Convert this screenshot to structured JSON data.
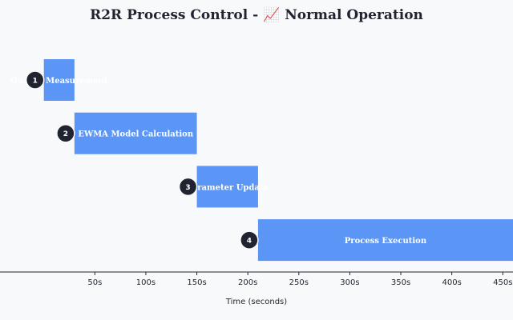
{
  "chart_data": {
    "type": "bar",
    "orientation": "horizontal-timeline",
    "title": "R2R Process Control - 📈 Normal Operation",
    "xlabel": "Time (seconds)",
    "ylabel": "",
    "xlim": [
      -43,
      460
    ],
    "x_ticks": [
      50,
      100,
      150,
      200,
      250,
      300,
      350,
      400,
      450
    ],
    "x_tick_suffix": "s",
    "grid": false,
    "bar_color": "#5b95f5",
    "badge_color": "#1f2430",
    "steps": [
      {
        "step": "1",
        "label": "Quality Measurement",
        "start": 0,
        "end": 30
      },
      {
        "step": "2",
        "label": "EWMA Model Calculation",
        "start": 30,
        "end": 150
      },
      {
        "step": "3",
        "label": "Parameter Update",
        "start": 150,
        "end": 210
      },
      {
        "step": "4",
        "label": "Process Execution",
        "start": 210,
        "end": 460
      }
    ]
  }
}
